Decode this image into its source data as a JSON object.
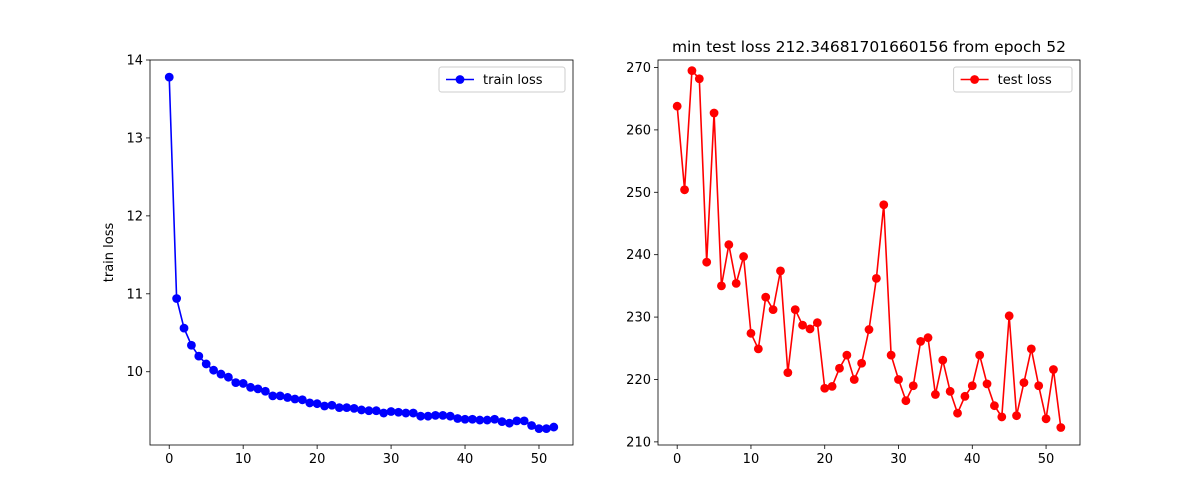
{
  "chart_data": [
    {
      "type": "line",
      "title": "",
      "xlabel": "",
      "ylabel": "train loss",
      "xlim": [
        -2.6,
        54.6
      ],
      "ylim": [
        9.06,
        14.0
      ],
      "xticks": [
        0,
        10,
        20,
        30,
        40,
        50
      ],
      "yticks": [
        10,
        11,
        12,
        13,
        14
      ],
      "grid": false,
      "legend_position": "top-right",
      "series": [
        {
          "name": "train loss",
          "color": "#0000ff",
          "marker": "circle",
          "x": [
            0,
            1,
            2,
            3,
            4,
            5,
            6,
            7,
            8,
            9,
            10,
            11,
            12,
            13,
            14,
            15,
            16,
            17,
            18,
            19,
            20,
            21,
            22,
            23,
            24,
            25,
            26,
            27,
            28,
            29,
            30,
            31,
            32,
            33,
            34,
            35,
            36,
            37,
            38,
            39,
            40,
            41,
            42,
            43,
            44,
            45,
            46,
            47,
            48,
            49,
            50,
            51,
            52
          ],
          "y": [
            13.78,
            10.94,
            10.56,
            10.34,
            10.2,
            10.1,
            10.02,
            9.97,
            9.93,
            9.86,
            9.85,
            9.8,
            9.78,
            9.75,
            9.69,
            9.69,
            9.67,
            9.65,
            9.64,
            9.6,
            9.59,
            9.56,
            9.57,
            9.54,
            9.54,
            9.53,
            9.51,
            9.5,
            9.5,
            9.47,
            9.49,
            9.48,
            9.47,
            9.47,
            9.43,
            9.43,
            9.44,
            9.44,
            9.43,
            9.4,
            9.39,
            9.39,
            9.38,
            9.38,
            9.39,
            9.36,
            9.34,
            9.37,
            9.37,
            9.31,
            9.27,
            9.27,
            9.29
          ]
        }
      ]
    },
    {
      "type": "line",
      "title": "min test loss 212.34681701660156 from epoch 52",
      "xlabel": "",
      "ylabel": "",
      "xlim": [
        -2.6,
        54.6
      ],
      "ylim": [
        209.5,
        271.2
      ],
      "xticks": [
        0,
        10,
        20,
        30,
        40,
        50
      ],
      "yticks": [
        210,
        220,
        230,
        240,
        250,
        260,
        270
      ],
      "grid": false,
      "legend_position": "top-right",
      "series": [
        {
          "name": "test loss",
          "color": "#ff0000",
          "marker": "circle",
          "x": [
            0,
            1,
            2,
            3,
            4,
            5,
            6,
            7,
            8,
            9,
            10,
            11,
            12,
            13,
            14,
            15,
            16,
            17,
            18,
            19,
            20,
            21,
            22,
            23,
            24,
            25,
            26,
            27,
            28,
            29,
            30,
            31,
            32,
            33,
            34,
            35,
            36,
            37,
            38,
            39,
            40,
            41,
            42,
            43,
            44,
            45,
            46,
            47,
            48,
            49,
            50,
            51,
            52
          ],
          "y": [
            263.8,
            250.4,
            269.5,
            268.2,
            238.8,
            262.7,
            235.0,
            241.6,
            235.4,
            239.7,
            227.4,
            224.9,
            233.2,
            231.2,
            237.4,
            221.1,
            231.2,
            228.7,
            228.1,
            229.1,
            218.6,
            218.9,
            221.8,
            223.9,
            220.0,
            222.6,
            228.0,
            236.2,
            248.0,
            223.9,
            220.0,
            216.6,
            219.0,
            226.1,
            226.7,
            217.6,
            223.1,
            218.1,
            214.6,
            217.3,
            219.0,
            223.9,
            219.3,
            215.8,
            214.0,
            230.2,
            214.2,
            219.5,
            224.9,
            219.0,
            213.7,
            221.6,
            212.3
          ]
        }
      ]
    }
  ]
}
